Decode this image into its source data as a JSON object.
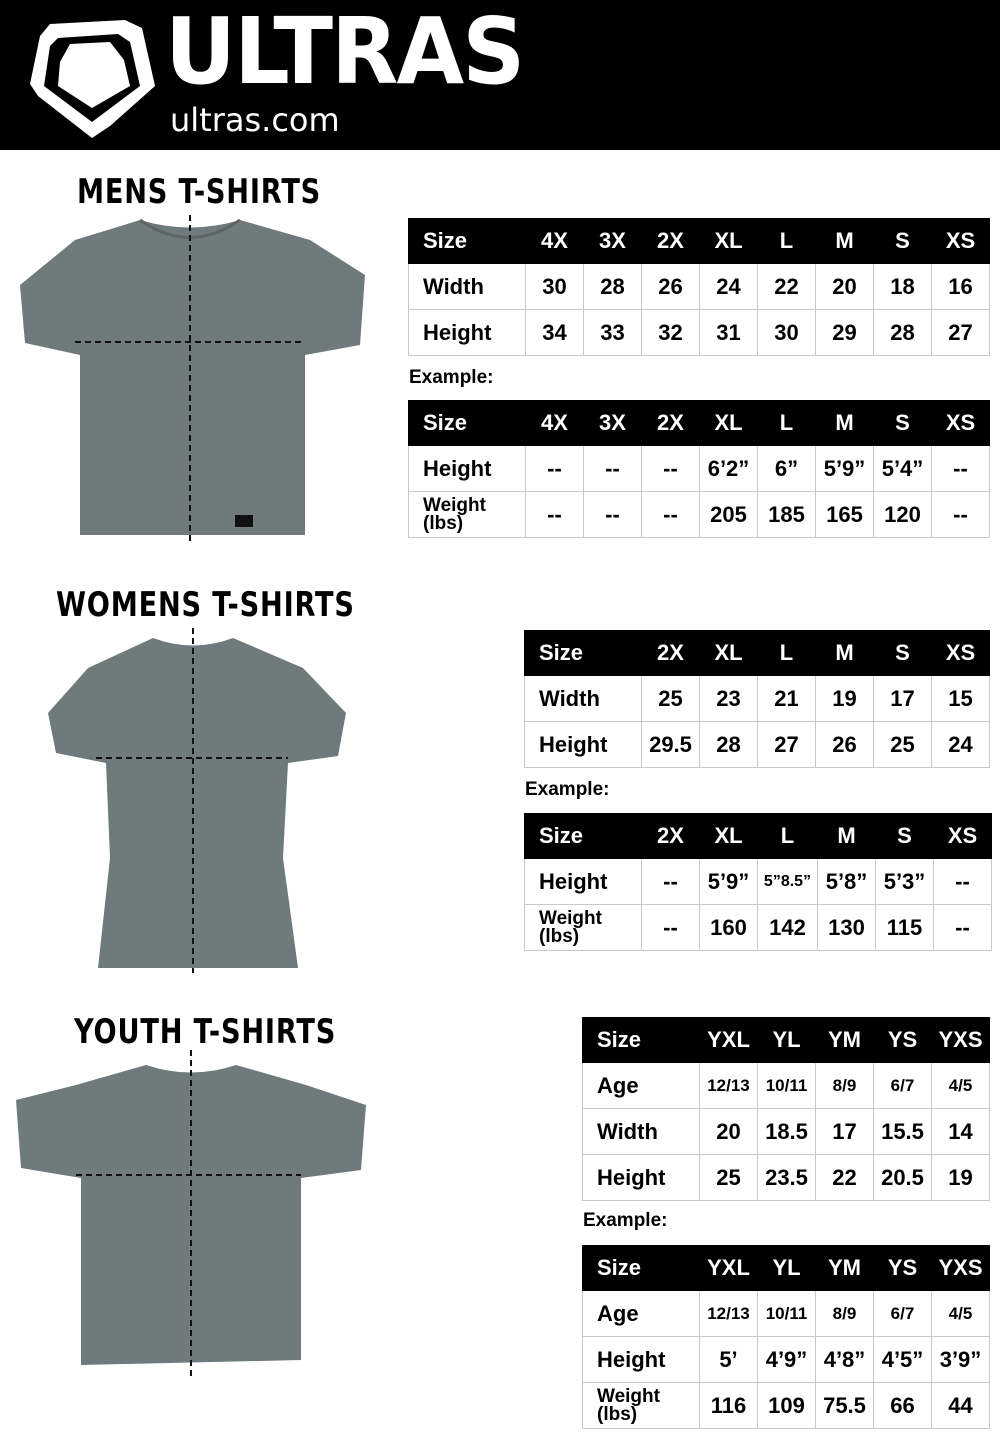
{
  "header": {
    "brand": "ULTRAS",
    "site": "ultras.com",
    "background": "#000000"
  },
  "sections": [
    {
      "title": "MENS T-SHIRTS",
      "example_label": "Example:",
      "size_table": {
        "header": [
          "Size",
          "4X",
          "3X",
          "2X",
          "XL",
          "L",
          "M",
          "S",
          "XS"
        ],
        "rows": [
          [
            "Width",
            "30",
            "28",
            "26",
            "24",
            "22",
            "20",
            "18",
            "16"
          ],
          [
            "Height",
            "34",
            "33",
            "32",
            "31",
            "30",
            "29",
            "28",
            "27"
          ]
        ]
      },
      "example_table": {
        "header": [
          "Size",
          "4X",
          "3X",
          "2X",
          "XL",
          "L",
          "M",
          "S",
          "XS"
        ],
        "rows": [
          [
            "Height",
            "--",
            "--",
            "--",
            "6’2”",
            "6”",
            "5’9”",
            "5’4”",
            "--"
          ],
          [
            "Weight (lbs)",
            "--",
            "--",
            "--",
            "205",
            "185",
            "165",
            "120",
            "--"
          ]
        ]
      }
    },
    {
      "title": "WOMENS T-SHIRTS",
      "example_label": "Example:",
      "size_table": {
        "header": [
          "Size",
          "2X",
          "XL",
          "L",
          "M",
          "S",
          "XS"
        ],
        "rows": [
          [
            "Width",
            "25",
            "23",
            "21",
            "19",
            "17",
            "15"
          ],
          [
            "Height",
            "29.5",
            "28",
            "27",
            "26",
            "25",
            "24"
          ]
        ]
      },
      "example_table": {
        "header": [
          "Size",
          "2X",
          "XL",
          "L",
          "M",
          "S",
          "XS"
        ],
        "rows": [
          [
            "Height",
            "--",
            "5’9”",
            "5”8.5”",
            "5’8”",
            "5’3”",
            "--"
          ],
          [
            "Weight (lbs)",
            "--",
            "160",
            "142",
            "130",
            "115",
            "--"
          ]
        ]
      }
    },
    {
      "title": "YOUTH T-SHIRTS",
      "example_label": "Example:",
      "size_table": {
        "header": [
          "Size",
          "YXL",
          "YL",
          "YM",
          "YS",
          "YXS"
        ],
        "rows": [
          [
            "Age",
            "12/13",
            "10/11",
            "8/9",
            "6/7",
            "4/5"
          ],
          [
            "Width",
            "20",
            "18.5",
            "17",
            "15.5",
            "14"
          ],
          [
            "Height",
            "25",
            "23.5",
            "22",
            "20.5",
            "19"
          ]
        ]
      },
      "example_table": {
        "header": [
          "Size",
          "YXL",
          "YL",
          "YM",
          "YS",
          "YXS"
        ],
        "rows": [
          [
            "Age",
            "12/13",
            "10/11",
            "8/9",
            "6/7",
            "4/5"
          ],
          [
            "Height",
            "5’",
            "4’9”",
            "4’8”",
            "4’5”",
            "3’9”"
          ],
          [
            "Weight (lbs)",
            "116",
            "109",
            "75.5",
            "66",
            "44"
          ]
        ]
      }
    }
  ],
  "colors": {
    "shirt": "#6f7a7d",
    "table_header": "#000000",
    "grid": "#c8c8c8"
  }
}
